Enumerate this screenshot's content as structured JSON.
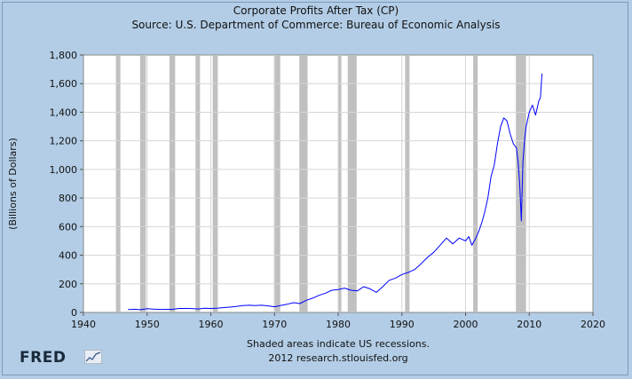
{
  "chart_data": {
    "type": "line",
    "title": "Corporate Profits After Tax (CP)",
    "subtitle": "Source: U.S. Department of Commerce: Bureau of Economic Analysis",
    "ylabel": "(Billions of Dollars)",
    "xlabel": "",
    "xlim": [
      1940,
      2020
    ],
    "ylim": [
      0,
      1800
    ],
    "x_ticks": [
      1940,
      1950,
      1960,
      1970,
      1980,
      1990,
      2000,
      2010,
      2020
    ],
    "y_ticks": [
      0,
      200,
      400,
      600,
      800,
      1000,
      1200,
      1400,
      1600,
      1800
    ],
    "x_tick_labels": [
      "1940",
      "1950",
      "1960",
      "1970",
      "1980",
      "1990",
      "2000",
      "2010",
      "2020"
    ],
    "y_tick_labels": [
      "0",
      "200",
      "400",
      "600",
      "800",
      "1,000",
      "1,200",
      "1,400",
      "1,600",
      "1,800"
    ],
    "grid": true,
    "line_color": "#0000ff",
    "recession_color": "#c0c0c0",
    "recessions": [
      [
        1945.1,
        1945.8
      ],
      [
        1948.9,
        1949.8
      ],
      [
        1953.5,
        1954.4
      ],
      [
        1957.6,
        1958.3
      ],
      [
        1960.3,
        1961.1
      ],
      [
        1969.9,
        1970.9
      ],
      [
        1973.9,
        1975.2
      ],
      [
        1980.0,
        1980.5
      ],
      [
        1981.5,
        1982.9
      ],
      [
        1990.5,
        1991.2
      ],
      [
        2001.2,
        2001.9
      ],
      [
        2007.9,
        2009.5
      ]
    ],
    "series": [
      {
        "x": [
          1947,
          1948,
          1949,
          1950,
          1951,
          1952,
          1953,
          1954,
          1955,
          1956,
          1957,
          1958,
          1959,
          1960,
          1961,
          1962,
          1963,
          1964,
          1965,
          1966,
          1967,
          1968,
          1969,
          1970,
          1971,
          1972,
          1973,
          1974,
          1975,
          1976,
          1977,
          1978,
          1979,
          1980,
          1981,
          1982,
          1983,
          1984,
          1985,
          1986,
          1987,
          1988,
          1989,
          1990,
          1991,
          1992,
          1993,
          1994,
          1995,
          1996,
          1997,
          1998,
          1999,
          2000,
          2000.5,
          2001,
          2001.5,
          2002,
          2002.5,
          2003,
          2003.5,
          2004,
          2004.5,
          2005,
          2005.5,
          2006,
          2006.5,
          2007,
          2007.5,
          2008,
          2008.25,
          2008.5,
          2008.75,
          2009,
          2009.25,
          2009.5,
          2010,
          2010.5,
          2011,
          2011.5,
          2011.75,
          2012
        ],
        "values": [
          20,
          22,
          19,
          26,
          23,
          21,
          22,
          22,
          28,
          28,
          27,
          24,
          30,
          28,
          29,
          34,
          37,
          42,
          48,
          50,
          48,
          50,
          46,
          40,
          49,
          58,
          68,
          62,
          85,
          100,
          120,
          135,
          155,
          160,
          170,
          155,
          150,
          180,
          165,
          140,
          180,
          225,
          240,
          265,
          280,
          300,
          340,
          385,
          420,
          470,
          520,
          480,
          520,
          500,
          530,
          470,
          510,
          560,
          620,
          700,
          800,
          950,
          1030,
          1180,
          1300,
          1360,
          1340,
          1250,
          1180,
          1150,
          1050,
          900,
          640,
          1050,
          1200,
          1300,
          1400,
          1450,
          1380,
          1480,
          1500,
          1670
        ]
      }
    ]
  },
  "footer": {
    "recession_note": "Shaded areas indicate US recessions.",
    "credit": "2012 research.stlouisfed.org",
    "logo_text": "FRED"
  }
}
